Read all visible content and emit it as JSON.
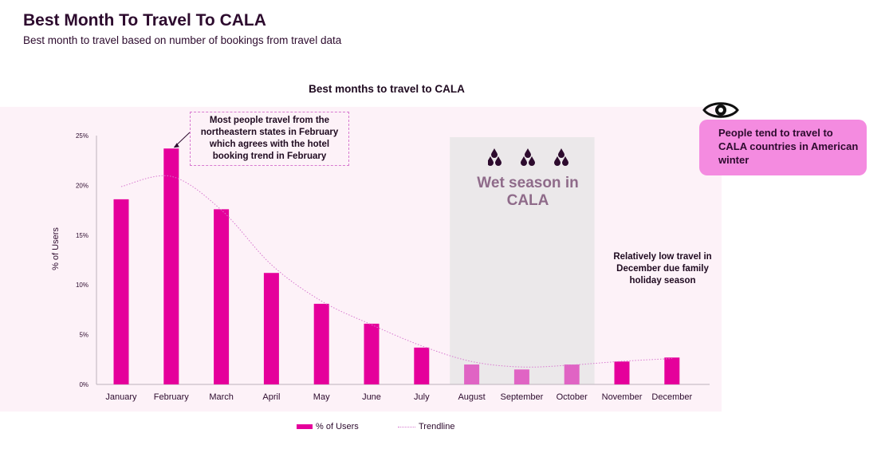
{
  "header": {
    "title": "Best Month To Travel To CALA",
    "subtitle": "Best month to travel based on number of bookings from travel data"
  },
  "annotations": {
    "february_note": "Most people travel from the northeastern states in February which agrees with the hotel booking trend in February",
    "december_note": "Relatively low travel in December due family holiday season",
    "wet_season": "Wet season in CALA",
    "callout": "People tend to travel to CALA countries in American winter"
  },
  "icons": {
    "callout_icon": "eye-icon",
    "wet_season_icon": "raindrops-icon"
  },
  "colors": {
    "bar": "#e5009b",
    "bar_wet_season": "#e064c4",
    "trendline": "#d87ad0",
    "wet_season_band": "#ebe8ea",
    "callout_bg": "#f48be0",
    "panel_bg": "#fdf2f8"
  },
  "chart_data": {
    "type": "bar",
    "title": "Best months to travel to CALA",
    "ylabel": "% of Users",
    "xlabel": "",
    "ylim": [
      0,
      25
    ],
    "yticks": [
      "0%",
      "5%",
      "10%",
      "15%",
      "20%",
      "25%"
    ],
    "ytick_values": [
      0,
      5,
      10,
      15,
      20,
      25
    ],
    "categories": [
      "January",
      "February",
      "March",
      "April",
      "May",
      "June",
      "July",
      "August",
      "September",
      "October",
      "November",
      "December"
    ],
    "series": [
      {
        "name": "% of Users",
        "values": [
          18.6,
          23.7,
          17.6,
          11.2,
          8.1,
          6.1,
          3.7,
          2.0,
          1.5,
          2.0,
          2.3,
          2.7
        ]
      }
    ],
    "trendline": {
      "name": "Trendline",
      "style": "dotted"
    },
    "shaded_range": {
      "from": "August",
      "to": "October"
    },
    "grid": false,
    "legend": "bottom-center"
  }
}
